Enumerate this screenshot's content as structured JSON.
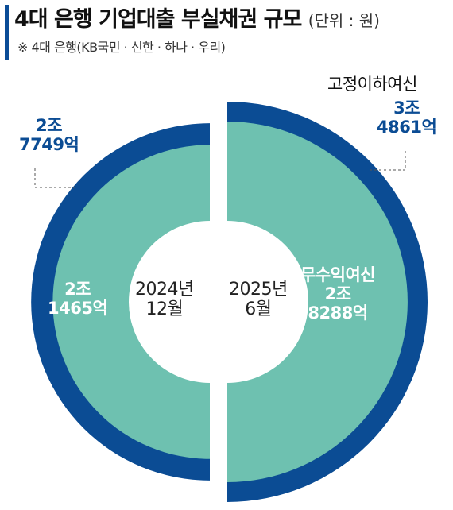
{
  "header": {
    "title": "4대 은행 기업대출 부실채권 규모",
    "unit": "(단위 : 원)",
    "subtitle": "※ 4대 은행(KB국민 · 신한 · 하나 · 우리)"
  },
  "colors": {
    "outer_ring": "#0b4c94",
    "inner_fill": "#6ec1b0",
    "hole": "#ffffff",
    "accent": "#0a4c96"
  },
  "chart_data": {
    "type": "pie",
    "subtype": "split semicircle comparison",
    "series_labels": [
      "고정이하여신",
      "무수익여신"
    ],
    "periods": [
      {
        "line1": "2024년",
        "line2": "12월",
        "outer_text": [
          "2조",
          "7749억"
        ],
        "inner_text": [
          "2조",
          "1465억"
        ],
        "outer_value_eok": 27749,
        "inner_value_eok": 21465
      },
      {
        "line1": "2025년",
        "line2": "6월",
        "outer_text": [
          "3조",
          "4861억"
        ],
        "inner_text": [
          "2조",
          "8288억"
        ],
        "outer_value_eok": 34861,
        "inner_value_eok": 28288
      }
    ]
  }
}
